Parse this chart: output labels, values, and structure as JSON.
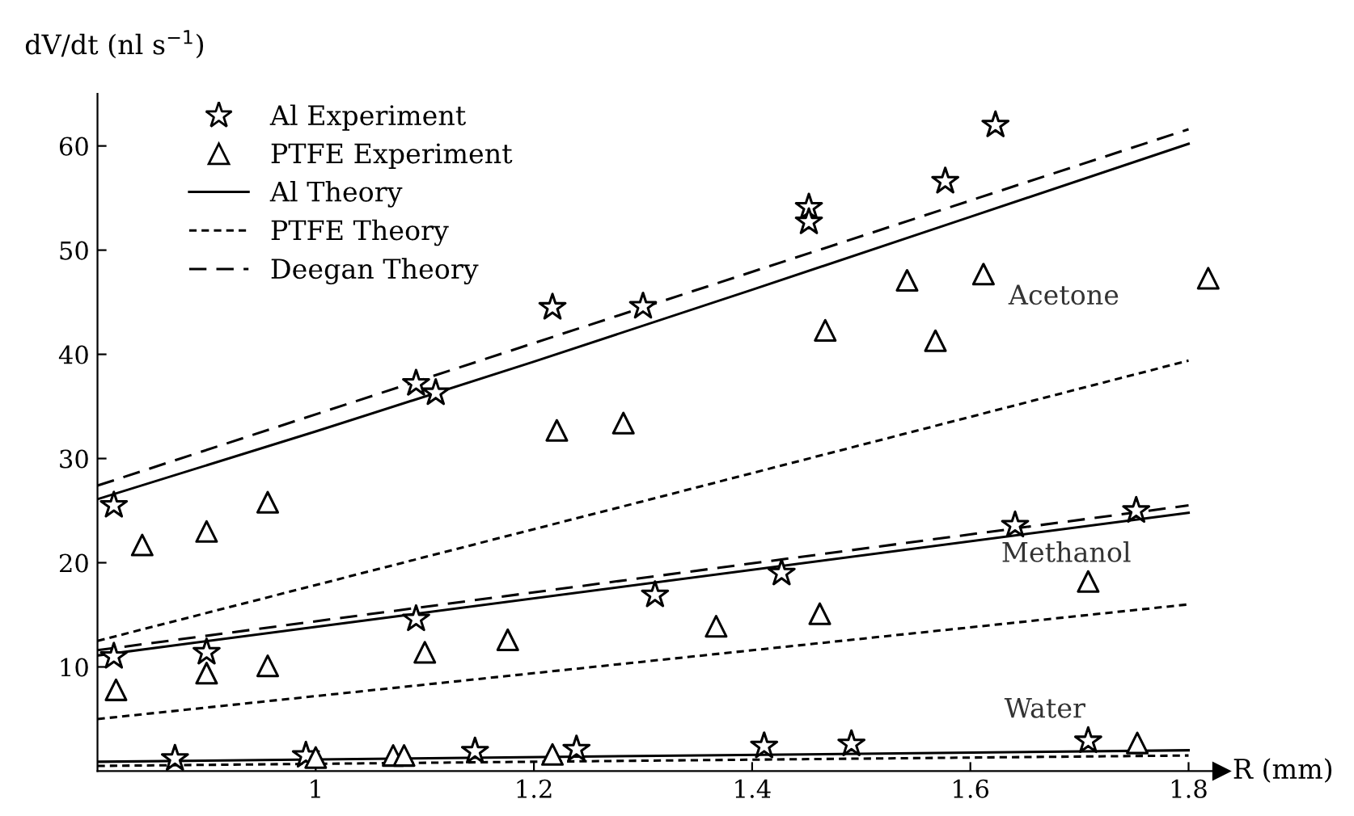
{
  "chart_data": {
    "type": "scatter",
    "xlabel": "R (mm)",
    "ylabel": "dV/dt (nl s$^{−1}$)",
    "xlim": [
      0.8,
      1.83
    ],
    "ylim": [
      0,
      65
    ],
    "xticks": [
      1,
      1.2,
      1.4,
      1.6,
      1.8
    ],
    "yticks": [
      10,
      20,
      30,
      40,
      50,
      60
    ],
    "grid": false,
    "legend": "top left",
    "series": [
      {
        "name": "Al Experiment",
        "marker": "star",
        "color": "#000000",
        "x": [
          0.815,
          1.092,
          1.11,
          1.217,
          1.3,
          1.452,
          1.452,
          1.577,
          1.623,
          0.815,
          0.9,
          1.092,
          1.311,
          1.427,
          1.641,
          1.752,
          0.871,
          0.991,
          1.146,
          1.239,
          1.411,
          1.491,
          1.708
        ],
        "values": [
          25.5,
          37.2,
          36.3,
          44.5,
          44.6,
          54.1,
          52.7,
          56.6,
          62.0,
          11.0,
          11.4,
          14.6,
          16.9,
          19.0,
          23.6,
          25.0,
          1.2,
          1.5,
          1.9,
          2.1,
          2.4,
          2.6,
          2.9
        ]
      },
      {
        "name": "PTFE Experiment",
        "marker": "triangle",
        "color": "#000000",
        "x": [
          0.841,
          0.9,
          0.956,
          1.221,
          1.282,
          1.467,
          1.542,
          1.568,
          1.612,
          1.818,
          0.817,
          0.9,
          0.956,
          1.1,
          1.176,
          1.367,
          1.462,
          1.708,
          1.0,
          1.071,
          1.081,
          1.217,
          1.753
        ],
        "values": [
          21.7,
          23.0,
          25.8,
          32.7,
          33.4,
          42.3,
          47.1,
          41.3,
          47.7,
          47.3,
          7.8,
          9.4,
          10.1,
          11.4,
          12.6,
          13.9,
          15.1,
          18.2,
          1.3,
          1.5,
          1.5,
          1.6,
          2.7
        ]
      },
      {
        "name": "Al Theory",
        "type": "line",
        "line_style": "solid",
        "color": "#000000",
        "x": [
          0.8,
          1.0,
          1.2,
          1.4,
          1.6,
          1.8
        ],
        "values": [
          26.1,
          32.6,
          39.3,
          46.2,
          53.2,
          60.2
        ]
      },
      {
        "name": "PTFE Theory",
        "type": "line",
        "line_style": "dotted",
        "color": "#000000",
        "x": [
          0.8,
          1.3,
          1.8
        ],
        "values": [
          12.5,
          25.9,
          39.4
        ]
      },
      {
        "name": "Deegan Theory",
        "type": "line",
        "line_style": "dashed",
        "color": "#000000",
        "x": [
          0.8,
          1.8
        ],
        "values": [
          27.4,
          61.6
        ]
      },
      {
        "type": "line",
        "line_style": "solid",
        "color": "#000000",
        "x": [
          0.8,
          1.8
        ],
        "values": [
          11.1,
          24.8
        ]
      },
      {
        "type": "line",
        "line_style": "dotted",
        "color": "#000000",
        "x": [
          0.8,
          1.8
        ],
        "values": [
          5.0,
          16.0
        ]
      },
      {
        "type": "line",
        "line_style": "dashed",
        "color": "#000000",
        "x": [
          0.8,
          1.8
        ],
        "values": [
          11.6,
          25.5
        ]
      },
      {
        "type": "line",
        "line_style": "solid",
        "color": "#000000",
        "x": [
          0.8,
          1.8
        ],
        "values": [
          0.9,
          2.0
        ]
      },
      {
        "type": "line",
        "line_style": "dotted",
        "color": "#000000",
        "x": [
          0.8,
          1.8
        ],
        "values": [
          0.5,
          1.5
        ]
      }
    ],
    "annotations": [
      "Acetone",
      "Methanol",
      "Water"
    ]
  }
}
